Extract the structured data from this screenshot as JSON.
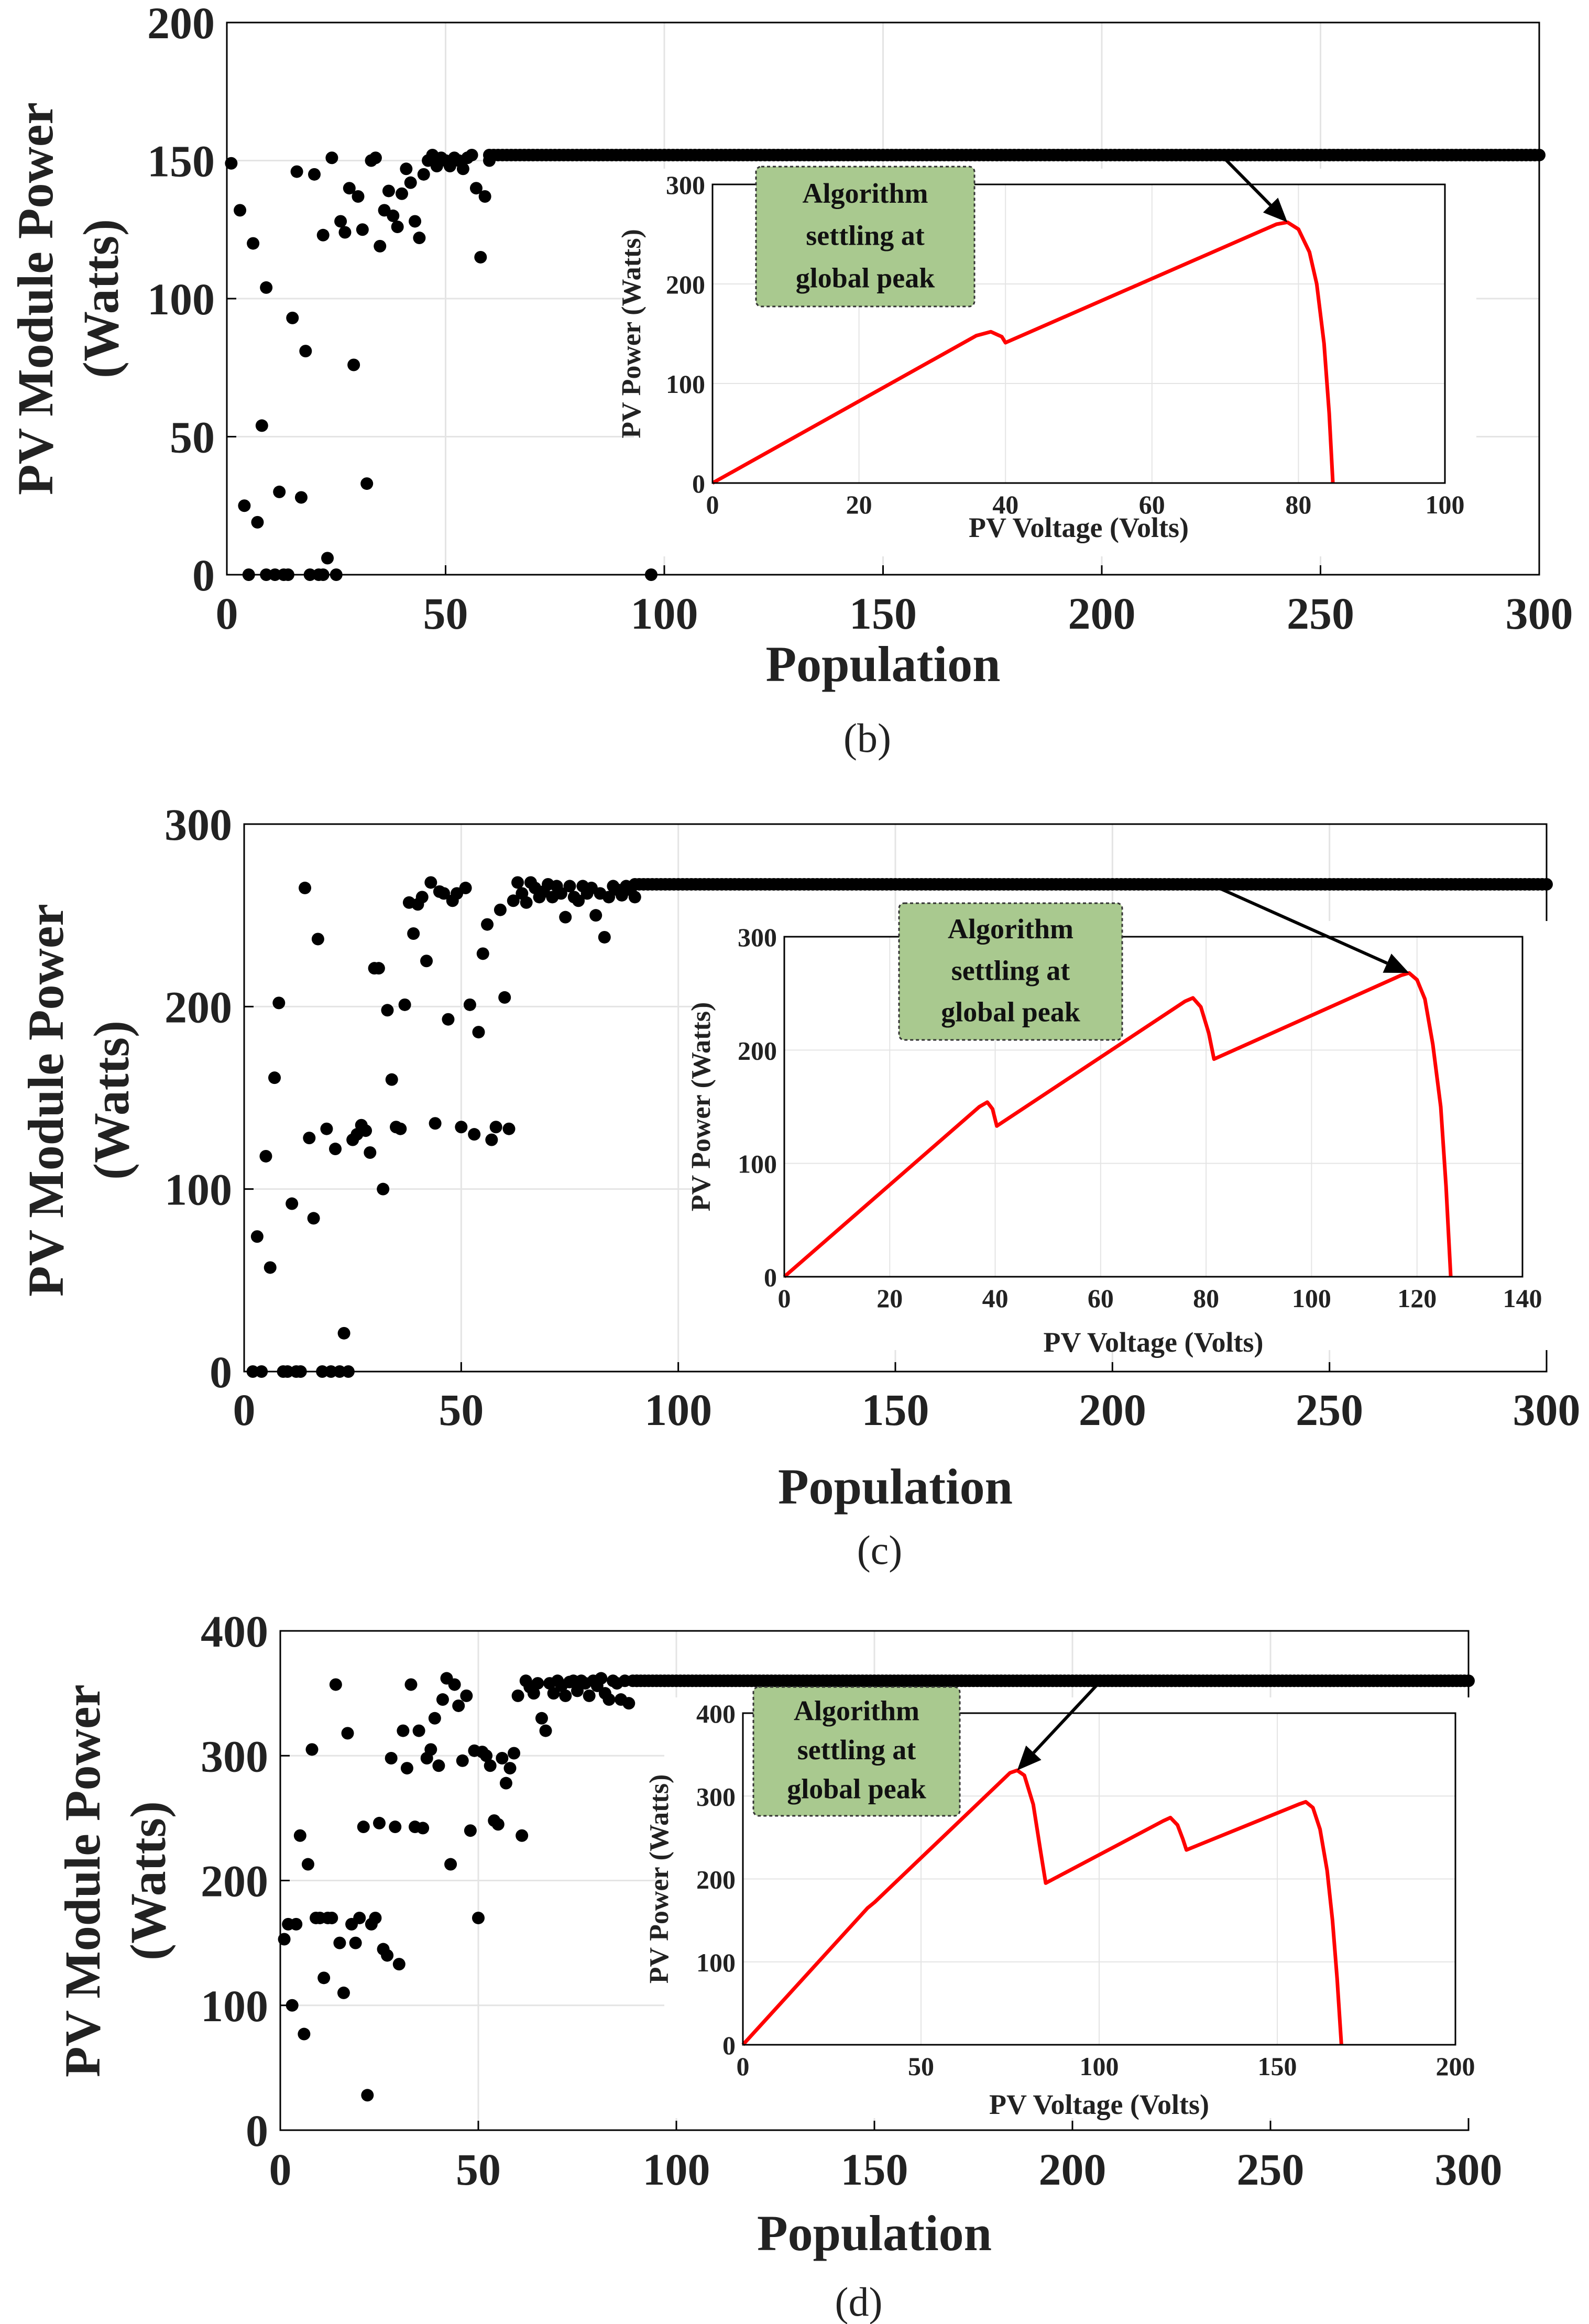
{
  "chart_data": [
    {
      "panel": "(b)",
      "type": "scatter",
      "title": "",
      "xlabel": "Population",
      "ylabel": "PV Module Power (Watts)",
      "ylabel_lines": [
        "PV Module Power",
        "(Watts)"
      ],
      "xlim": [
        0,
        300
      ],
      "ylim": [
        0,
        200
      ],
      "x_ticks": [
        "0",
        "50",
        "100",
        "150",
        "200",
        "250",
        "300"
      ],
      "y_ticks": [
        "0",
        "50",
        "100",
        "150",
        "200"
      ],
      "grid": true,
      "points": [
        [
          1,
          149
        ],
        [
          3,
          132
        ],
        [
          4,
          25
        ],
        [
          5,
          0
        ],
        [
          6,
          120
        ],
        [
          7,
          19
        ],
        [
          8,
          54
        ],
        [
          9,
          104
        ],
        [
          9,
          0
        ],
        [
          11,
          0
        ],
        [
          12,
          30
        ],
        [
          13,
          0
        ],
        [
          14,
          0
        ],
        [
          15,
          93
        ],
        [
          16,
          146
        ],
        [
          17,
          28
        ],
        [
          18,
          81
        ],
        [
          19,
          0
        ],
        [
          20,
          145
        ],
        [
          21,
          0
        ],
        [
          22,
          123
        ],
        [
          22,
          0
        ],
        [
          23,
          6
        ],
        [
          24,
          151
        ],
        [
          25,
          0
        ],
        [
          26,
          128
        ],
        [
          27,
          124
        ],
        [
          28,
          140
        ],
        [
          29,
          76
        ],
        [
          30,
          137
        ],
        [
          31,
          125
        ],
        [
          32,
          33
        ],
        [
          33,
          150
        ],
        [
          34,
          151
        ],
        [
          35,
          119
        ],
        [
          36,
          132
        ],
        [
          37,
          139
        ],
        [
          38,
          130
        ],
        [
          39,
          126
        ],
        [
          40,
          138
        ],
        [
          41,
          147
        ],
        [
          42,
          142
        ],
        [
          43,
          128
        ],
        [
          44,
          122
        ],
        [
          45,
          145
        ],
        [
          46,
          150
        ],
        [
          47,
          152
        ],
        [
          48,
          148
        ],
        [
          49,
          151
        ],
        [
          50,
          150
        ],
        [
          51,
          148
        ],
        [
          52,
          151
        ],
        [
          53,
          150
        ],
        [
          54,
          147
        ],
        [
          55,
          151
        ],
        [
          56,
          152
        ],
        [
          57,
          140
        ],
        [
          58,
          115
        ],
        [
          59,
          137
        ],
        [
          60,
          150
        ],
        [
          97,
          0
        ]
      ],
      "converged": {
        "x_from": 60,
        "x_to": 300,
        "value": 152
      },
      "inset": {
        "type": "line",
        "xlabel": "PV Voltage (Volts)",
        "ylabel": "PV Power (Watts)",
        "xlim": [
          0,
          100
        ],
        "ylim": [
          0,
          300
        ],
        "x_ticks": [
          "0",
          "20",
          "40",
          "60",
          "80",
          "100"
        ],
        "y_ticks": [
          "0",
          "100",
          "200",
          "300"
        ],
        "curve": [
          [
            0,
            0
          ],
          [
            36,
            148
          ],
          [
            38,
            152
          ],
          [
            39.5,
            147
          ],
          [
            40,
            141
          ],
          [
            77,
            260
          ],
          [
            78.5,
            262
          ],
          [
            80,
            255
          ],
          [
            81.5,
            232
          ],
          [
            82.5,
            200
          ],
          [
            83.5,
            140
          ],
          [
            84.2,
            70
          ],
          [
            84.7,
            0
          ]
        ],
        "color": "#ff0000"
      },
      "annotation": {
        "lines": [
          "Algorithm",
          "settling at",
          "global peak"
        ],
        "fill": "#a9c98f"
      }
    },
    {
      "panel": "(c)",
      "type": "scatter",
      "title": "",
      "xlabel": "Population",
      "ylabel": "PV Module Power (Watts)",
      "ylabel_lines": [
        "PV Module Power",
        "(Watts)"
      ],
      "xlim": [
        0,
        300
      ],
      "ylim": [
        0,
        300
      ],
      "x_ticks": [
        "0",
        "50",
        "100",
        "150",
        "200",
        "250",
        "300"
      ],
      "y_ticks": [
        "0",
        "100",
        "200",
        "300"
      ],
      "grid": true,
      "points": [
        [
          2,
          0
        ],
        [
          3,
          74
        ],
        [
          4,
          0
        ],
        [
          5,
          118
        ],
        [
          6,
          57
        ],
        [
          7,
          161
        ],
        [
          8,
          202
        ],
        [
          9,
          0
        ],
        [
          10,
          0
        ],
        [
          11,
          92
        ],
        [
          12,
          0
        ],
        [
          13,
          0
        ],
        [
          14,
          265
        ],
        [
          15,
          128
        ],
        [
          16,
          84
        ],
        [
          17,
          237
        ],
        [
          18,
          0
        ],
        [
          19,
          133
        ],
        [
          20,
          0
        ],
        [
          21,
          122
        ],
        [
          22,
          0
        ],
        [
          23,
          21
        ],
        [
          24,
          0
        ],
        [
          25,
          127
        ],
        [
          26,
          130
        ],
        [
          27,
          135
        ],
        [
          28,
          132
        ],
        [
          29,
          120
        ],
        [
          30,
          221
        ],
        [
          31,
          221
        ],
        [
          32,
          100
        ],
        [
          33,
          198
        ],
        [
          34,
          160
        ],
        [
          35,
          134
        ],
        [
          36,
          133
        ],
        [
          37,
          201
        ],
        [
          38,
          257
        ],
        [
          39,
          240
        ],
        [
          40,
          256
        ],
        [
          41,
          260
        ],
        [
          42,
          225
        ],
        [
          43,
          268
        ],
        [
          44,
          136
        ],
        [
          45,
          263
        ],
        [
          46,
          262
        ],
        [
          47,
          193
        ],
        [
          48,
          258
        ],
        [
          49,
          262
        ],
        [
          50,
          134
        ],
        [
          51,
          265
        ],
        [
          52,
          201
        ],
        [
          53,
          130
        ],
        [
          54,
          186
        ],
        [
          55,
          229
        ],
        [
          56,
          245
        ],
        [
          57,
          127
        ],
        [
          58,
          134
        ],
        [
          59,
          253
        ],
        [
          60,
          205
        ],
        [
          61,
          133
        ],
        [
          62,
          258
        ],
        [
          63,
          268
        ],
        [
          64,
          262
        ],
        [
          65,
          257
        ],
        [
          66,
          268
        ],
        [
          67,
          265
        ],
        [
          68,
          260
        ],
        [
          69,
          263
        ],
        [
          70,
          267
        ],
        [
          71,
          260
        ],
        [
          72,
          266
        ],
        [
          73,
          262
        ],
        [
          74,
          249
        ],
        [
          75,
          266
        ],
        [
          76,
          260
        ],
        [
          77,
          258
        ],
        [
          78,
          266
        ],
        [
          79,
          262
        ],
        [
          80,
          265
        ],
        [
          81,
          250
        ],
        [
          82,
          262
        ],
        [
          83,
          238
        ],
        [
          84,
          260
        ],
        [
          85,
          266
        ],
        [
          86,
          264
        ],
        [
          87,
          261
        ],
        [
          88,
          266
        ],
        [
          89,
          264
        ],
        [
          90,
          260
        ]
      ],
      "converged": {
        "x_from": 90,
        "x_to": 300,
        "value": 267
      },
      "inset": {
        "type": "line",
        "xlabel": "PV Voltage (Volts)",
        "ylabel": "PV Power (Watts)",
        "xlim": [
          0,
          140
        ],
        "ylim": [
          0,
          300
        ],
        "x_ticks": [
          "0",
          "20",
          "40",
          "60",
          "80",
          "100",
          "120",
          "140"
        ],
        "y_ticks": [
          "0",
          "100",
          "200",
          "300"
        ],
        "curve": [
          [
            0,
            0
          ],
          [
            37,
            150
          ],
          [
            38.5,
            154
          ],
          [
            39.5,
            148
          ],
          [
            40.3,
            133
          ],
          [
            76,
            243
          ],
          [
            77.5,
            246
          ],
          [
            79,
            238
          ],
          [
            80.5,
            215
          ],
          [
            81.5,
            192
          ],
          [
            117,
            266
          ],
          [
            118.5,
            268
          ],
          [
            120,
            262
          ],
          [
            121.5,
            245
          ],
          [
            123,
            205
          ],
          [
            124.5,
            150
          ],
          [
            125.5,
            80
          ],
          [
            126.4,
            0
          ]
        ],
        "color": "#ff0000"
      },
      "annotation": {
        "lines": [
          "Algorithm",
          "settling at",
          "global peak"
        ],
        "fill": "#a9c98f"
      }
    },
    {
      "panel": "(d)",
      "type": "scatter",
      "title": "",
      "xlabel": "Population",
      "ylabel": "PV Module Power (Watts)",
      "ylabel_lines": [
        "PV Module Power",
        "(Watts)"
      ],
      "xlim": [
        0,
        300
      ],
      "ylim": [
        0,
        400
      ],
      "x_ticks": [
        "0",
        "50",
        "100",
        "150",
        "200",
        "250",
        "300"
      ],
      "y_ticks": [
        "0",
        "100",
        "200",
        "300",
        "400"
      ],
      "grid": true,
      "points": [
        [
          1,
          153
        ],
        [
          2,
          165
        ],
        [
          3,
          100
        ],
        [
          4,
          165
        ],
        [
          5,
          236
        ],
        [
          6,
          77
        ],
        [
          7,
          213
        ],
        [
          8,
          305
        ],
        [
          9,
          170
        ],
        [
          10,
          170
        ],
        [
          11,
          122
        ],
        [
          12,
          170
        ],
        [
          13,
          170
        ],
        [
          14,
          357
        ],
        [
          15,
          150
        ],
        [
          16,
          110
        ],
        [
          17,
          318
        ],
        [
          18,
          165
        ],
        [
          19,
          150
        ],
        [
          20,
          170
        ],
        [
          21,
          243
        ],
        [
          22,
          28
        ],
        [
          23,
          165
        ],
        [
          24,
          170
        ],
        [
          25,
          246
        ],
        [
          26,
          145
        ],
        [
          27,
          140
        ],
        [
          28,
          298
        ],
        [
          29,
          243
        ],
        [
          30,
          133
        ],
        [
          31,
          320
        ],
        [
          32,
          290
        ],
        [
          33,
          357
        ],
        [
          34,
          243
        ],
        [
          35,
          320
        ],
        [
          36,
          242
        ],
        [
          37,
          298
        ],
        [
          38,
          305
        ],
        [
          39,
          330
        ],
        [
          40,
          292
        ],
        [
          41,
          345
        ],
        [
          42,
          362
        ],
        [
          43,
          213
        ],
        [
          44,
          357
        ],
        [
          45,
          340
        ],
        [
          46,
          296
        ],
        [
          47,
          348
        ],
        [
          48,
          240
        ],
        [
          49,
          304
        ],
        [
          50,
          170
        ],
        [
          51,
          303
        ],
        [
          52,
          300
        ],
        [
          53,
          292
        ],
        [
          54,
          248
        ],
        [
          55,
          245
        ],
        [
          56,
          298
        ],
        [
          57,
          278
        ],
        [
          58,
          290
        ],
        [
          59,
          302
        ],
        [
          60,
          348
        ],
        [
          61,
          236
        ],
        [
          62,
          360
        ],
        [
          63,
          355
        ],
        [
          64,
          350
        ],
        [
          65,
          358
        ],
        [
          66,
          330
        ],
        [
          67,
          320
        ],
        [
          68,
          358
        ],
        [
          69,
          350
        ],
        [
          70,
          360
        ],
        [
          71,
          356
        ],
        [
          72,
          348
        ],
        [
          73,
          359
        ],
        [
          74,
          360
        ],
        [
          75,
          352
        ],
        [
          76,
          360
        ],
        [
          77,
          358
        ],
        [
          78,
          348
        ],
        [
          79,
          360
        ],
        [
          80,
          356
        ],
        [
          81,
          362
        ],
        [
          82,
          350
        ],
        [
          83,
          345
        ],
        [
          84,
          360
        ],
        [
          85,
          358
        ],
        [
          86,
          345
        ],
        [
          87,
          360
        ],
        [
          88,
          342
        ],
        [
          89,
          360
        ],
        [
          90,
          360
        ]
      ],
      "converged": {
        "x_from": 90,
        "x_to": 300,
        "value": 360
      },
      "inset": {
        "type": "line",
        "xlabel": "PV Voltage (Volts)",
        "ylabel": "PV Power (Watts)",
        "xlim": [
          0,
          200
        ],
        "ylim": [
          0,
          400
        ],
        "x_ticks": [
          "0",
          "50",
          "100",
          "150",
          "200"
        ],
        "y_ticks": [
          "0",
          "100",
          "200",
          "300",
          "400"
        ],
        "curve": [
          [
            0,
            0
          ],
          [
            35,
            165
          ],
          [
            37,
            172
          ],
          [
            75,
            328
          ],
          [
            77,
            331
          ],
          [
            79,
            325
          ],
          [
            81.5,
            290
          ],
          [
            83.5,
            235
          ],
          [
            85,
            195
          ],
          [
            118,
            270
          ],
          [
            120,
            274
          ],
          [
            122,
            265
          ],
          [
            123.5,
            248
          ],
          [
            124.5,
            235
          ],
          [
            156,
            290
          ],
          [
            158,
            293
          ],
          [
            160,
            286
          ],
          [
            162,
            260
          ],
          [
            164,
            210
          ],
          [
            165.5,
            150
          ],
          [
            166.8,
            80
          ],
          [
            168,
            0
          ]
        ],
        "color": "#ff0000"
      },
      "annotation": {
        "lines": [
          "Algorithm",
          "settling at",
          "global peak"
        ],
        "fill": "#a9c98f"
      }
    }
  ]
}
